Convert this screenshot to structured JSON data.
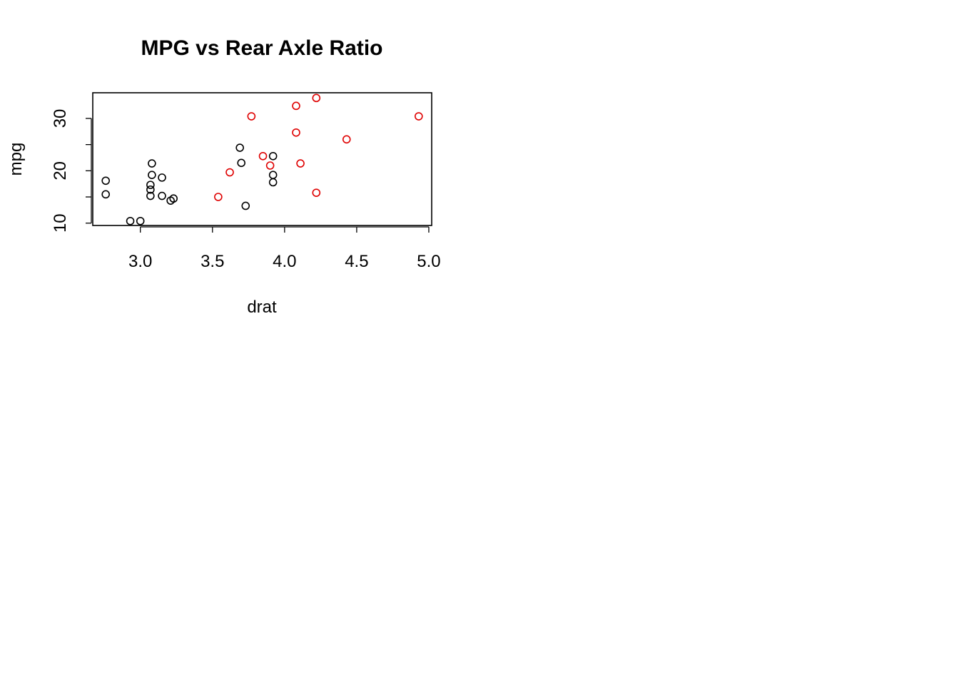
{
  "chart_data": {
    "type": "scatter",
    "title": "MPG vs Rear Axle Ratio",
    "xlabel": "drat",
    "ylabel": "mpg",
    "xlim": [
      2.67,
      5.02
    ],
    "ylim": [
      9.55,
      34.9
    ],
    "xticks": [
      3.0,
      3.5,
      4.0,
      4.5,
      5.0
    ],
    "xtick_labels": [
      "3.0",
      "3.5",
      "4.0",
      "4.5",
      "5.0"
    ],
    "yticks": [
      10,
      15,
      20,
      25,
      30
    ],
    "ytick_labels": [
      "10",
      "",
      "20",
      "",
      "30"
    ],
    "grid": false,
    "legend": null,
    "series": [
      {
        "color": "#000000",
        "points": [
          [
            2.76,
            18.1
          ],
          [
            2.76,
            15.5
          ],
          [
            2.93,
            10.4
          ],
          [
            3.0,
            10.4
          ],
          [
            3.07,
            17.3
          ],
          [
            3.07,
            16.4
          ],
          [
            3.07,
            15.2
          ],
          [
            3.08,
            21.4
          ],
          [
            3.08,
            19.2
          ],
          [
            3.15,
            18.7
          ],
          [
            3.15,
            15.2
          ],
          [
            3.21,
            14.3
          ],
          [
            3.23,
            14.7
          ],
          [
            3.69,
            24.4
          ],
          [
            3.7,
            21.5
          ],
          [
            3.73,
            13.3
          ],
          [
            3.92,
            22.8
          ],
          [
            3.92,
            19.2
          ],
          [
            3.92,
            17.8
          ]
        ]
      },
      {
        "color": "#DF0000",
        "points": [
          [
            3.54,
            15.0
          ],
          [
            3.62,
            19.7
          ],
          [
            3.77,
            30.4
          ],
          [
            3.85,
            22.8
          ],
          [
            3.9,
            21.0
          ],
          [
            4.08,
            32.4
          ],
          [
            4.08,
            27.3
          ],
          [
            4.11,
            21.4
          ],
          [
            4.22,
            33.9
          ],
          [
            4.22,
            15.8
          ],
          [
            4.43,
            26.0
          ],
          [
            4.93,
            30.4
          ]
        ]
      }
    ]
  }
}
